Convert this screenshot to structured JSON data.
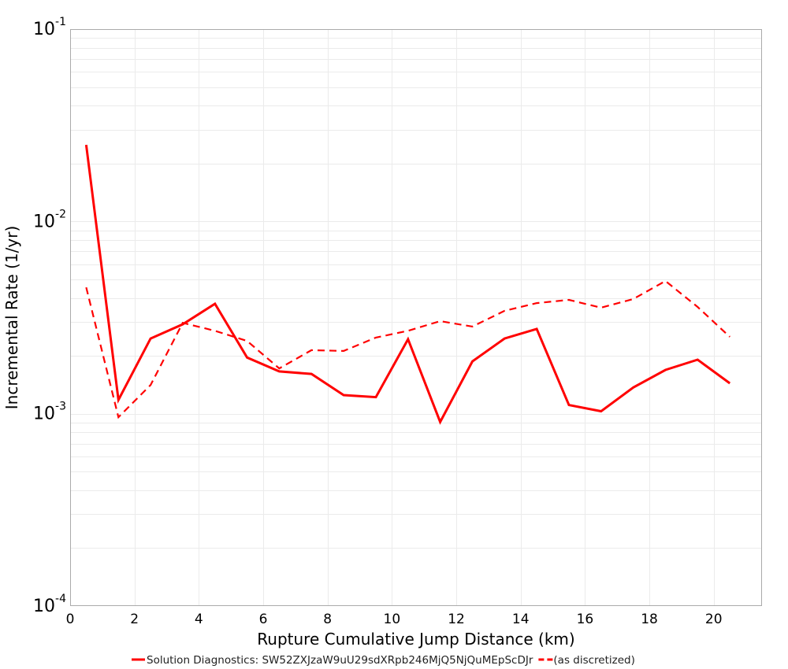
{
  "chart_data": {
    "type": "line",
    "title": "",
    "xlabel": "Rupture Cumulative Jump Distance (km)",
    "ylabel": "Incremental Rate (1/yr)",
    "xscale": "linear",
    "yscale": "log",
    "xlim": [
      0,
      21.5
    ],
    "ylim": [
      0.0001,
      0.1
    ],
    "grid": true,
    "legend_position": "bottom",
    "x_ticks": [
      "0",
      "2",
      "4",
      "6",
      "8",
      "10",
      "12",
      "14",
      "16",
      "18",
      "20"
    ],
    "y_ticks": [
      {
        "base": "10",
        "exp": "-1",
        "value": 0.1
      },
      {
        "base": "10",
        "exp": "-2",
        "value": 0.01
      },
      {
        "base": "10",
        "exp": "-3",
        "value": 0.001
      },
      {
        "base": "10",
        "exp": "-4",
        "value": 0.0001
      }
    ],
    "x": [
      0.5,
      1.5,
      2.5,
      3.5,
      4.5,
      5.5,
      6.5,
      7.5,
      8.5,
      9.5,
      10.5,
      11.5,
      12.5,
      13.5,
      14.5,
      15.5,
      16.5,
      17.5,
      18.5,
      19.5,
      20.5
    ],
    "series": [
      {
        "name": "Solution Diagnostics: SW52ZXJzaW9uU29sdXRpb246MjQ5NjQuMEpScDJr",
        "style": "solid",
        "color": "#ff0000",
        "values": [
          0.025,
          0.00118,
          0.00246,
          0.00292,
          0.00373,
          0.00196,
          0.00166,
          0.00161,
          0.00125,
          0.00122,
          0.00244,
          0.000906,
          0.00187,
          0.00246,
          0.00276,
          0.00111,
          0.00103,
          0.00137,
          0.00169,
          0.00191,
          0.00144
        ]
      },
      {
        "name": "(as discretized)",
        "style": "dashed",
        "color": "#ff0000",
        "values": [
          0.00454,
          0.000959,
          0.00141,
          0.00297,
          0.0027,
          0.00239,
          0.00172,
          0.00214,
          0.00212,
          0.00249,
          0.0027,
          0.00303,
          0.00284,
          0.00343,
          0.00376,
          0.00391,
          0.00356,
          0.00395,
          0.0049,
          0.00359,
          0.00251
        ]
      }
    ]
  }
}
